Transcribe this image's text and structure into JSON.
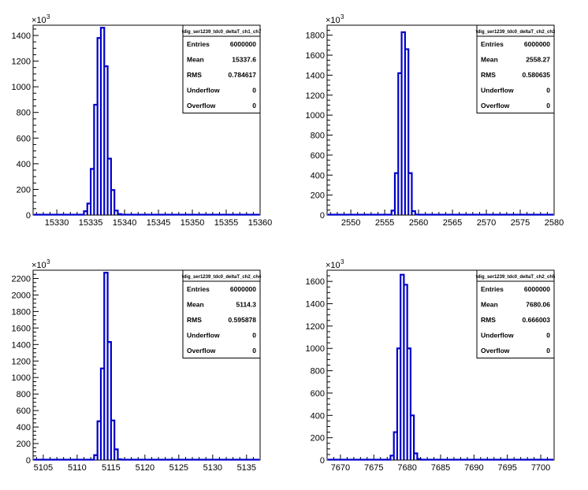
{
  "colors": {
    "histogram": "#0000cc",
    "axis": "#000000",
    "background": "#ffffff"
  },
  "chart_data": [
    {
      "type": "histogram",
      "stats_title": "tdig_ser1239_tdc0_deltaT_ch1_ch7",
      "stats": [
        {
          "label": "Entries",
          "value": "6000000"
        },
        {
          "label": "Mean",
          "value": "15337.6"
        },
        {
          "label": "RMS",
          "value": "0.784617"
        },
        {
          "label": "Underflow",
          "value": "0"
        },
        {
          "label": "Overflow",
          "value": "0"
        }
      ],
      "xlim": [
        15326.5,
        15360
      ],
      "x_ticks": [
        15330,
        15335,
        15340,
        15345,
        15350,
        15355,
        15360
      ],
      "ylim": [
        0,
        1480
      ],
      "y_ticks": [
        0,
        200,
        400,
        600,
        800,
        1000,
        1200,
        1400
      ],
      "y_exponent_base": "×10",
      "y_exponent_power": "3",
      "bin_width": 0.5,
      "bins": [
        {
          "x": 15334.0,
          "y": 30
        },
        {
          "x": 15334.5,
          "y": 90
        },
        {
          "x": 15335.0,
          "y": 360
        },
        {
          "x": 15335.5,
          "y": 860
        },
        {
          "x": 15336.0,
          "y": 1380
        },
        {
          "x": 15336.5,
          "y": 1460
        },
        {
          "x": 15337.0,
          "y": 1160
        },
        {
          "x": 15337.5,
          "y": 440
        },
        {
          "x": 15338.0,
          "y": 195
        },
        {
          "x": 15338.5,
          "y": 35
        },
        {
          "x": 15339.0,
          "y": 8
        }
      ]
    },
    {
      "type": "histogram",
      "stats_title": "tdig_ser1239_tdc0_deltaT_ch2_ch3",
      "stats": [
        {
          "label": "Entries",
          "value": "6000000"
        },
        {
          "label": "Mean",
          "value": "2558.27"
        },
        {
          "label": "RMS",
          "value": "0.580635"
        },
        {
          "label": "Underflow",
          "value": "0"
        },
        {
          "label": "Overflow",
          "value": "0"
        }
      ],
      "xlim": [
        2546.5,
        2580
      ],
      "x_ticks": [
        2550,
        2555,
        2560,
        2565,
        2570,
        2575,
        2580
      ],
      "ylim": [
        0,
        1900
      ],
      "y_ticks": [
        0,
        200,
        400,
        600,
        800,
        1000,
        1200,
        1400,
        1600,
        1800
      ],
      "y_exponent_base": "×10",
      "y_exponent_power": "3",
      "bin_width": 0.5,
      "bins": [
        {
          "x": 2556.0,
          "y": 45
        },
        {
          "x": 2556.5,
          "y": 420
        },
        {
          "x": 2557.0,
          "y": 1420
        },
        {
          "x": 2557.5,
          "y": 1830
        },
        {
          "x": 2558.0,
          "y": 1660
        },
        {
          "x": 2558.5,
          "y": 420
        },
        {
          "x": 2559.0,
          "y": 40
        },
        {
          "x": 2559.5,
          "y": 5
        }
      ]
    },
    {
      "type": "histogram",
      "stats_title": "tdig_ser1239_tdc0_deltaT_ch2_ch4",
      "stats": [
        {
          "label": "Entries",
          "value": "6000000"
        },
        {
          "label": "Mean",
          "value": "5114.3"
        },
        {
          "label": "RMS",
          "value": "0.595878"
        },
        {
          "label": "Underflow",
          "value": "0"
        },
        {
          "label": "Overflow",
          "value": "0"
        }
      ],
      "xlim": [
        5103.5,
        5137
      ],
      "x_ticks": [
        5105,
        5110,
        5115,
        5120,
        5125,
        5130,
        5135
      ],
      "ylim": [
        0,
        2300
      ],
      "y_ticks": [
        0,
        200,
        400,
        600,
        800,
        1000,
        1200,
        1400,
        1600,
        1800,
        2000,
        2200
      ],
      "y_exponent_base": "×10",
      "y_exponent_power": "3",
      "bin_width": 0.5,
      "bins": [
        {
          "x": 5112.5,
          "y": 60
        },
        {
          "x": 5113.0,
          "y": 470
        },
        {
          "x": 5113.5,
          "y": 1110
        },
        {
          "x": 5114.0,
          "y": 2270
        },
        {
          "x": 5114.5,
          "y": 1430
        },
        {
          "x": 5115.0,
          "y": 480
        },
        {
          "x": 5115.5,
          "y": 130
        },
        {
          "x": 5116.0,
          "y": 10
        }
      ]
    },
    {
      "type": "histogram",
      "stats_title": "tdig_ser1239_tdc0_deltaT_ch2_ch5",
      "stats": [
        {
          "label": "Entries",
          "value": "6000000"
        },
        {
          "label": "Mean",
          "value": "7680.06"
        },
        {
          "label": "RMS",
          "value": "0.666003"
        },
        {
          "label": "Underflow",
          "value": "0"
        },
        {
          "label": "Overflow",
          "value": "0"
        }
      ],
      "xlim": [
        7668,
        7702
      ],
      "x_ticks": [
        7670,
        7675,
        7680,
        7685,
        7690,
        7695,
        7700
      ],
      "ylim": [
        0,
        1700
      ],
      "y_ticks": [
        0,
        200,
        400,
        600,
        800,
        1000,
        1200,
        1400,
        1600
      ],
      "y_exponent_base": "×10",
      "y_exponent_power": "3",
      "bin_width": 0.5,
      "bins": [
        {
          "x": 7677.5,
          "y": 40
        },
        {
          "x": 7678.0,
          "y": 250
        },
        {
          "x": 7678.5,
          "y": 1000
        },
        {
          "x": 7679.0,
          "y": 1660
        },
        {
          "x": 7679.5,
          "y": 1570
        },
        {
          "x": 7680.0,
          "y": 1000
        },
        {
          "x": 7680.5,
          "y": 400
        },
        {
          "x": 7681.0,
          "y": 60
        },
        {
          "x": 7681.5,
          "y": 10
        }
      ]
    }
  ]
}
